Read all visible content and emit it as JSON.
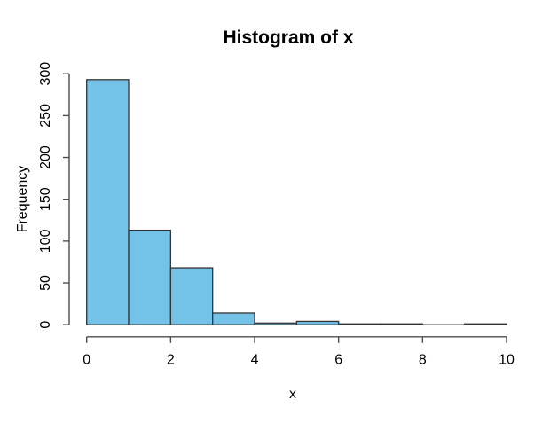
{
  "window": {
    "title": "Histogram of x",
    "background_color": "#ffffff"
  },
  "chart_data": {
    "type": "bar",
    "subtype": "histogram",
    "title": "Histogram of x",
    "xlabel": "x",
    "ylabel": "Frequency",
    "bin_start": 0,
    "bin_width": 1,
    "categories": [
      "0-1",
      "1-2",
      "2-3",
      "3-4",
      "4-5",
      "5-6",
      "6-7",
      "7-8",
      "8-9",
      "9-10"
    ],
    "values": [
      293,
      113,
      68,
      14,
      2,
      4,
      1,
      1,
      0,
      1
    ],
    "xlim": [
      0,
      10
    ],
    "ylim": [
      0,
      300
    ],
    "x_ticks": [
      "0",
      "2",
      "4",
      "6",
      "8",
      "10"
    ],
    "y_ticks": [
      "0",
      "50",
      "100",
      "150",
      "200",
      "250",
      "300"
    ],
    "grid": false,
    "legend_position": null,
    "bar_fill_color": "#74C2E8",
    "bar_border_color": "#333333",
    "axis_line_color": "#4D4D4D",
    "text_color": "#000000"
  }
}
